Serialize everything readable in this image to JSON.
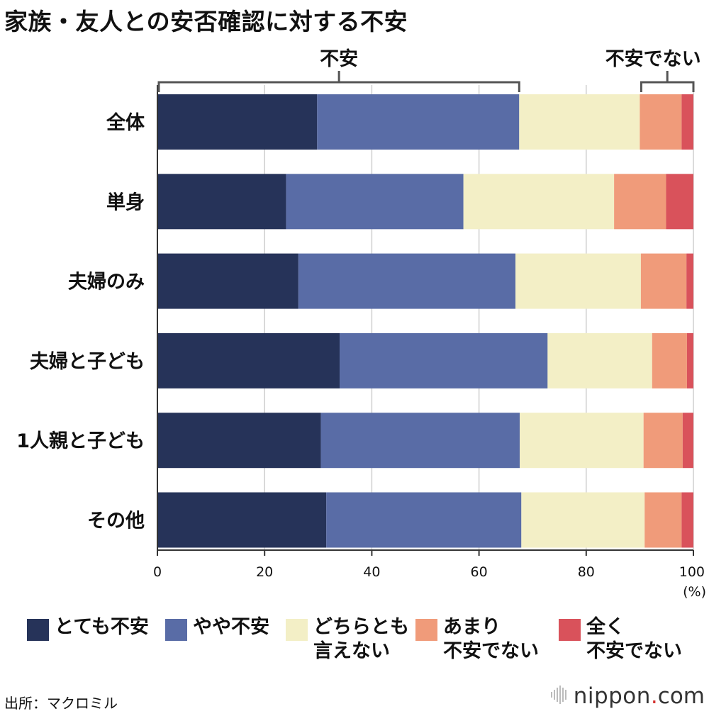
{
  "title": "家族・友人との安否確認に対する不安",
  "chart_data": {
    "type": "bar",
    "orientation": "horizontal",
    "stacked": true,
    "title": "家族・友人との安否確認に対する不安",
    "categories": [
      "全体",
      "単身",
      "夫婦のみ",
      "夫婦と子ども",
      "1人親と子ども",
      "その他"
    ],
    "series": [
      {
        "name": "とても不安",
        "color": "#263359",
        "values": [
          29.8,
          24.0,
          26.3,
          34.0,
          30.5,
          31.5
        ]
      },
      {
        "name": "やや不安",
        "color": "#596ca6",
        "values": [
          37.7,
          33.1,
          40.5,
          38.8,
          37.1,
          36.4
        ]
      },
      {
        "name": "どちらとも言えない",
        "color": "#f3efc6",
        "values": [
          22.5,
          28.1,
          23.4,
          19.5,
          23.1,
          23.0
        ]
      },
      {
        "name": "あまり不安でない",
        "color": "#f09b7a",
        "values": [
          7.8,
          9.7,
          8.5,
          6.5,
          7.3,
          6.9
        ]
      },
      {
        "name": "全く不安でない",
        "color": "#d9525b",
        "values": [
          2.2,
          5.1,
          1.3,
          1.2,
          2.0,
          2.2
        ]
      }
    ],
    "xlim": [
      0,
      100
    ],
    "xticks": [
      0,
      20,
      40,
      60,
      80,
      100
    ],
    "xunit": "(%)",
    "grid": true,
    "brackets": [
      {
        "label": "不安",
        "from": 0,
        "to": 67.5
      },
      {
        "label": "不安でない",
        "from": 90,
        "to": 100
      }
    ]
  },
  "legend": [
    {
      "label": "とても不安",
      "color": "#263359"
    },
    {
      "label": "やや不安",
      "color": "#596ca6"
    },
    {
      "label": "どちらとも\n言えない",
      "color": "#f3efc6"
    },
    {
      "label": "あまり\n不安でない",
      "color": "#f09b7a"
    },
    {
      "label": "全く\n不安でない",
      "color": "#d9525b"
    }
  ],
  "source": "出所：マクロミル",
  "brand": {
    "name": "nippon",
    "dot": ".",
    "tld": "com"
  }
}
